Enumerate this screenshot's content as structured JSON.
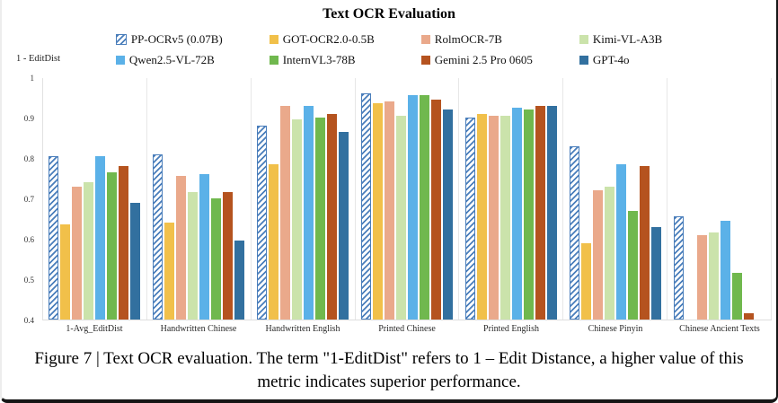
{
  "figure": {
    "title": "Text OCR Evaluation",
    "y_axis_title": "1 - EditDist",
    "caption": "Figure 7 | Text OCR evaluation. The term \"1-EditDist\" refers to 1 – Edit Distance, a higher value of this metric indicates superior performance."
  },
  "chart_data": {
    "type": "bar",
    "title": "Text OCR Evaluation",
    "xlabel": "",
    "ylabel": "1 - EditDist",
    "ylim": [
      0.4,
      1.0
    ],
    "ytick_labels": [
      "1",
      "0.9",
      "0.8",
      "0.7",
      "0.6",
      "0.5",
      "0.4"
    ],
    "grid": "vertical category separators only, no horizontal gridlines",
    "legend_position": "top, two rows of four",
    "categories": [
      "1-Avg_EditDist",
      "Handwritten Chinese",
      "Handwritten English",
      "Printed Chinese",
      "Printed English",
      "Chinese Pinyin",
      "Chinese Ancient Texts"
    ],
    "series": [
      {
        "name": "PP-OCRv5 (0.07B)",
        "color": "#4a7ebb",
        "hatch": true,
        "values": [
          0.805,
          0.81,
          0.88,
          0.96,
          0.9,
          0.83,
          0.655
        ]
      },
      {
        "name": "GOT-OCR2.0-0.5B",
        "color": "#f1c04a",
        "hatch": false,
        "values": [
          0.635,
          0.64,
          0.785,
          0.935,
          0.91,
          0.59,
          null
        ]
      },
      {
        "name": "RolmOCR-7B",
        "color": "#eaa98b",
        "hatch": false,
        "values": [
          0.73,
          0.755,
          0.93,
          0.94,
          0.905,
          0.72,
          0.61
        ]
      },
      {
        "name": "Kimi-VL-A3B",
        "color": "#cbe3ab",
        "hatch": false,
        "values": [
          0.74,
          0.715,
          0.895,
          0.905,
          0.905,
          0.73,
          0.615
        ]
      },
      {
        "name": "Qwen2.5-VL-72B",
        "color": "#5bb1e8",
        "hatch": false,
        "values": [
          0.805,
          0.76,
          0.93,
          0.955,
          0.925,
          0.785,
          0.645
        ]
      },
      {
        "name": "InternVL3-78B",
        "color": "#70b84e",
        "hatch": false,
        "values": [
          0.765,
          0.7,
          0.9,
          0.955,
          0.92,
          0.67,
          0.515
        ]
      },
      {
        "name": "Gemini 2.5 Pro 0605",
        "color": "#b5531f",
        "hatch": false,
        "values": [
          0.78,
          0.715,
          0.91,
          0.945,
          0.93,
          0.78,
          0.415
        ]
      },
      {
        "name": "GPT-4o",
        "color": "#32709f",
        "hatch": false,
        "values": [
          0.69,
          0.595,
          0.865,
          0.92,
          0.93,
          0.63,
          null
        ]
      }
    ]
  }
}
